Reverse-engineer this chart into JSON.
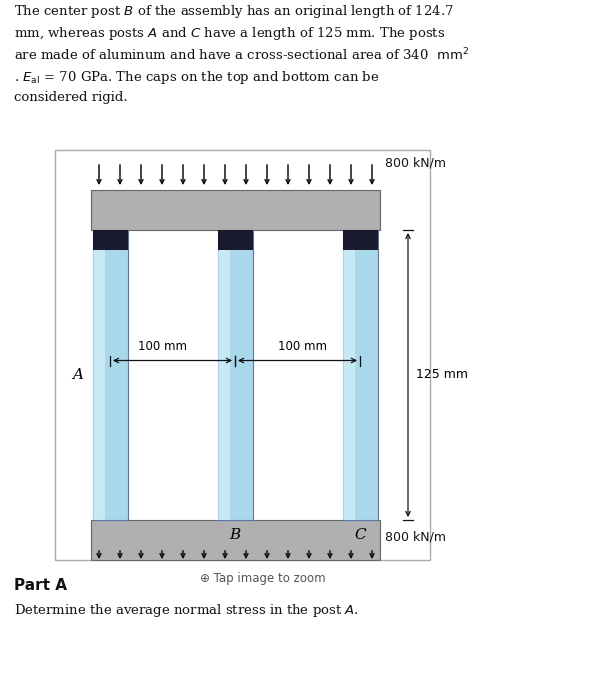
{
  "fig_w": 6.02,
  "fig_h": 7.0,
  "dpi": 100,
  "bg_color": "#ffffff",
  "text_color": "#111111",
  "cap_color": "#b0b0b0",
  "post_light": "#a8d8ea",
  "post_highlight": "#d4eef8",
  "post_dark": "#1a1a2e",
  "post_edge": "#5577aa",
  "arrow_color": "#111111",
  "box_edge": "#aaaaaa",
  "dim_line_color": "#111111",
  "n_arrows": 14,
  "problem_lines": [
    "The center post $B$ of the assembly has an original length of 124.7",
    "mm, whereas posts $A$ and $C$ have a length of 125 mm. The posts",
    "are made of aluminum and have a cross-sectional area of 340  $\\mathrm{mm}^2$",
    ". $E_\\mathrm{al}$ = 70 GPa. The caps on the top and bottom can be",
    "considered rigid."
  ],
  "load_text": "800 kN/m",
  "dim_AB": "100 mm",
  "dim_BC": "100 mm",
  "dim_height": "125 mm",
  "label_A": "A",
  "label_B": "B",
  "label_C": "C",
  "zoom_text": "Tap image to zoom",
  "part_label": "Part A",
  "question": "Determine the average normal stress in the post $A$."
}
